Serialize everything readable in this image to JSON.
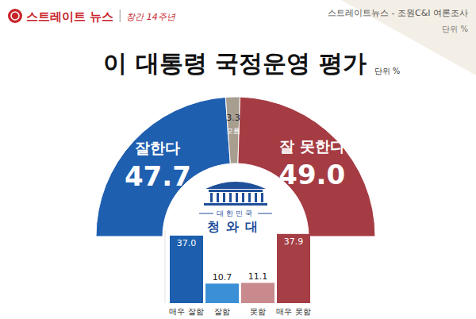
{
  "chart_data": [
    {
      "type": "pie",
      "title": "이 대통령 국정운영 평가",
      "categories": [
        "잘한다",
        "모름",
        "잘 못한다"
      ],
      "values": [
        47.7,
        3.3,
        49.0
      ],
      "value_labels": [
        "47.7",
        "3.3",
        "49.0"
      ],
      "colors": [
        "#1f5fb0",
        "#a89e90",
        "#a53c43"
      ],
      "data_labels": true,
      "annotations": [
        "스트레이트 뉴스",
        "창간 14주년",
        "스트레이트뉴스 - 조원C&I 여론조사",
        "단위 %",
        "단위 %",
        "대한민국",
        "청와대"
      ]
    },
    {
      "type": "bar",
      "categories": [
        "매우 잘함",
        "잘함",
        "못함",
        "매우 못함"
      ],
      "values": [
        37.0,
        10.7,
        11.1,
        37.9
      ],
      "value_labels": [
        "37.0",
        "10.7",
        "11.1",
        "37.9"
      ],
      "colors": [
        "#1d5fae",
        "#3b8fd6",
        "#c98a8d",
        "#a63e45"
      ],
      "ylim": [
        0,
        40
      ],
      "data_labels": true,
      "tick_labels": "x"
    }
  ]
}
